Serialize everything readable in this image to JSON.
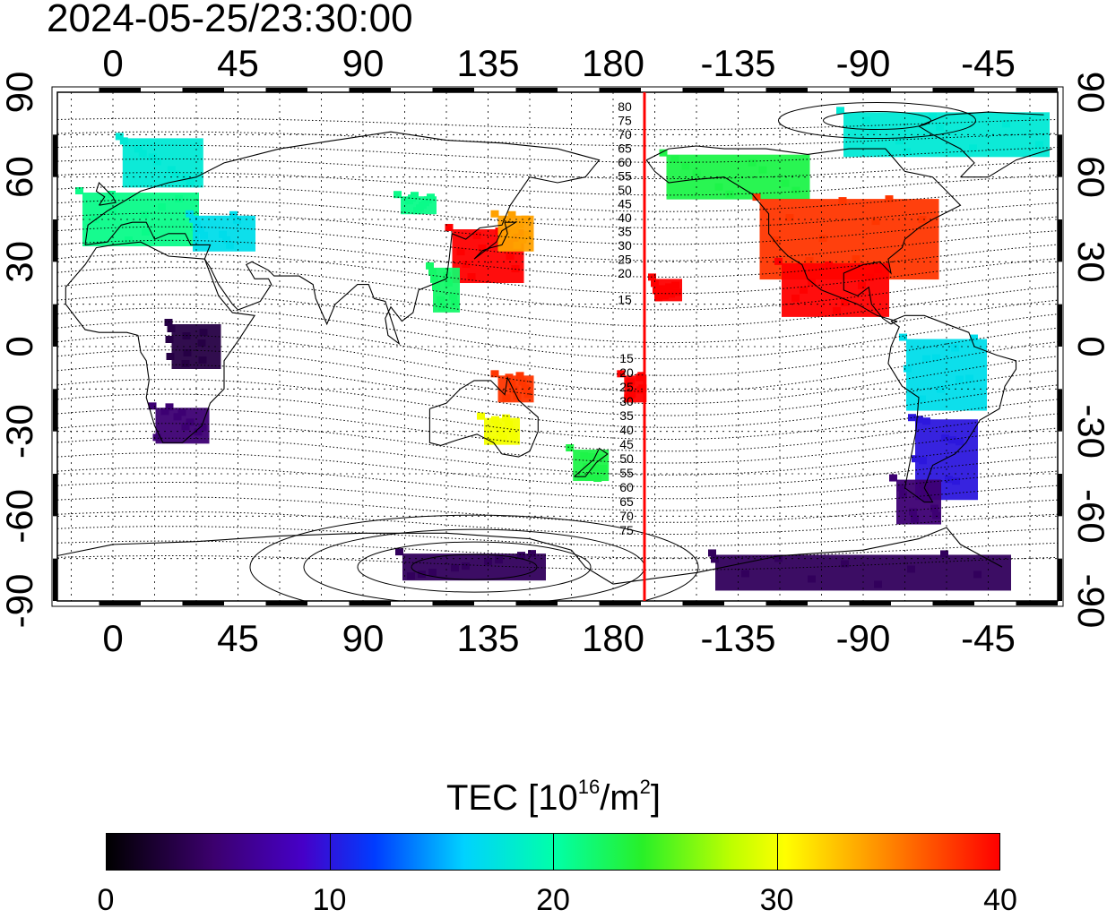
{
  "title": "2024-05-25/23:30:00",
  "map": {
    "lon_ticks_top": [
      "0",
      "45",
      "90",
      "135",
      "180",
      "-135",
      "-90",
      "-45"
    ],
    "lon_ticks_bottom": [
      "0",
      "45",
      "90",
      "135",
      "180",
      "-135",
      "-90",
      "-45"
    ],
    "lat_ticks_left": [
      "90",
      "60",
      "30",
      "0",
      "-30",
      "-60",
      "-90"
    ],
    "lat_ticks_right": [
      "90",
      "60",
      "30",
      "0",
      "-30",
      "-60",
      "-90"
    ],
    "terminator_line_color": "#ff0000",
    "north_contour_labels": [
      "80",
      "75",
      "70",
      "65",
      "60",
      "55",
      "50",
      "45",
      "40",
      "35",
      "30",
      "25",
      "20",
      "15"
    ],
    "south_contour_labels": [
      "15",
      "20",
      "25",
      "30",
      "35",
      "40",
      "45",
      "50",
      "55",
      "60",
      "65",
      "70",
      "75"
    ],
    "tec_regions": [
      {
        "lon": 18,
        "lat": 65,
        "tec": 18
      },
      {
        "lon": 10,
        "lat": 45,
        "tec": 21
      },
      {
        "lon": 40,
        "lat": 40,
        "tec": 17
      },
      {
        "lon": 110,
        "lat": 50,
        "tec": 21
      },
      {
        "lon": 135,
        "lat": 32,
        "tec": 40
      },
      {
        "lon": 145,
        "lat": 40,
        "tec": 34
      },
      {
        "lon": 120,
        "lat": 20,
        "tec": 22
      },
      {
        "lon": 25,
        "lat": -28,
        "tec": 5
      },
      {
        "lon": 30,
        "lat": 0,
        "tec": 3
      },
      {
        "lon": 145,
        "lat": -15,
        "tec": 38
      },
      {
        "lon": 140,
        "lat": -30,
        "tec": 30
      },
      {
        "lon": 172,
        "lat": -42,
        "tec": 23
      },
      {
        "lon": -160,
        "lat": 20,
        "tec": 40
      },
      {
        "lon": -172,
        "lat": -15,
        "tec": 40
      },
      {
        "lon": -135,
        "lat": 60,
        "tec": 23
      },
      {
        "lon": -60,
        "lat": 75,
        "tec": 18
      },
      {
        "lon": -95,
        "lat": 38,
        "tec": 38
      },
      {
        "lon": -100,
        "lat": 20,
        "tec": 40
      },
      {
        "lon": -60,
        "lat": -10,
        "tec": 17
      },
      {
        "lon": -60,
        "lat": -40,
        "tec": 10
      },
      {
        "lon": -70,
        "lat": -55,
        "tec": 5
      },
      {
        "lon": -90,
        "lat": -80,
        "tec": 4
      },
      {
        "lon": 130,
        "lat": -78,
        "tec": 4
      }
    ]
  },
  "colorbar": {
    "title_main": "TEC  [10",
    "title_exp": "16",
    "title_unit": "/m",
    "title_exp2": "2",
    "title_end": "]",
    "ticks": [
      "0",
      "10",
      "20",
      "30",
      "40"
    ],
    "min": 0,
    "max": 40
  }
}
